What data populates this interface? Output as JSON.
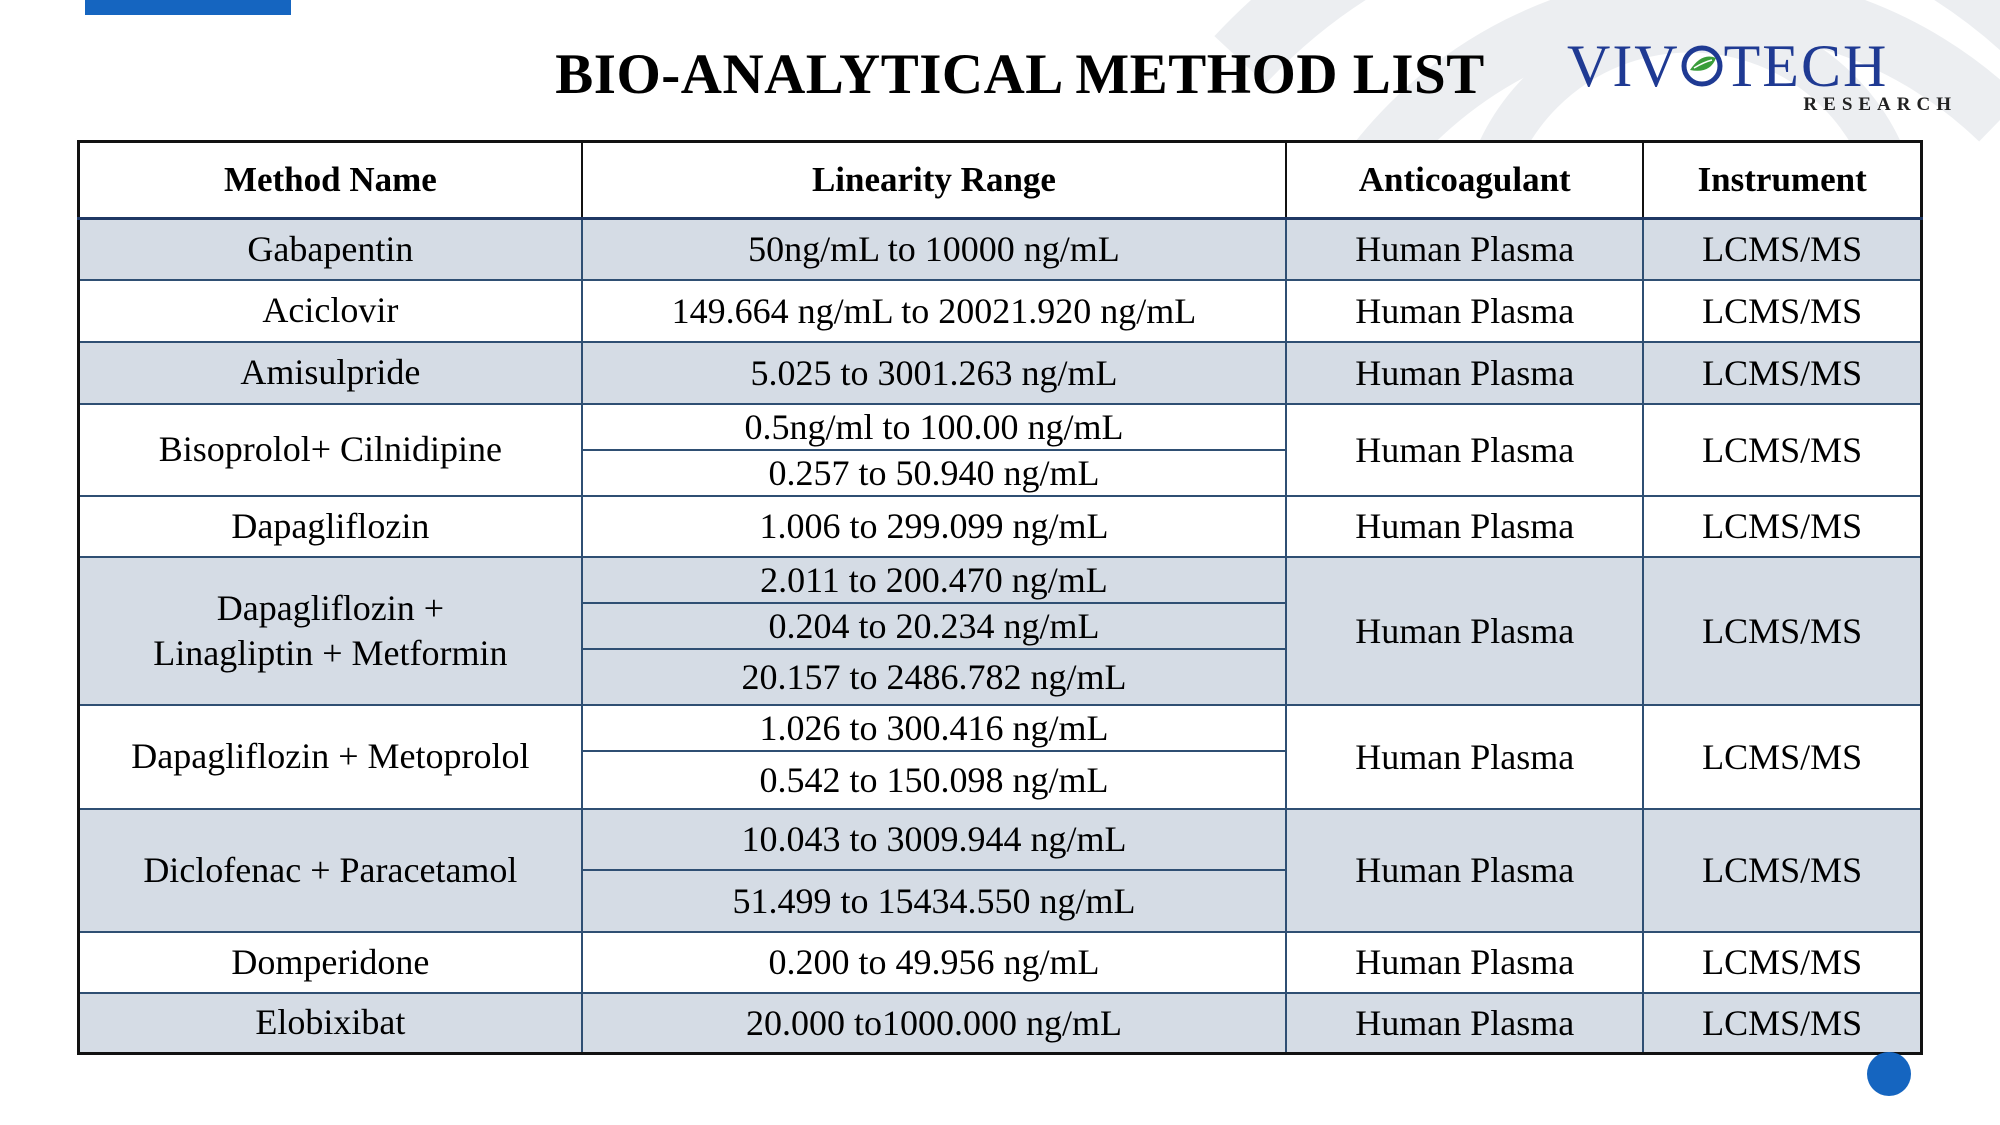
{
  "title": "BIO-ANALYTICAL METHOD LIST",
  "logo": {
    "brand_left": "VIV",
    "brand_right": "TECH",
    "sub": "RESEARCH"
  },
  "colors": {
    "accent": "#1565c0",
    "row_shade": "#d5dce5",
    "logo_blue": "#1f3a93",
    "logo_green": "#3a9d3a"
  },
  "table": {
    "headers": [
      "Method Name",
      "Linearity Range",
      "Anticoagulant",
      "Instrument"
    ],
    "rows": [
      {
        "method": "Gabapentin",
        "ranges": [
          "50ng/mL to 10000 ng/mL"
        ],
        "anticoagulant": "Human Plasma",
        "instrument": "LCMS/MS"
      },
      {
        "method": "Aciclovir",
        "ranges": [
          "149.664 ng/mL to 20021.920 ng/mL"
        ],
        "anticoagulant": "Human Plasma",
        "instrument": "LCMS/MS"
      },
      {
        "method": "Amisulpride",
        "ranges": [
          "5.025 to 3001.263 ng/mL"
        ],
        "anticoagulant": "Human Plasma",
        "instrument": "LCMS/MS"
      },
      {
        "method": "Bisoprolol+ Cilnidipine",
        "ranges": [
          "0.5ng/ml to 100.00 ng/mL",
          "0.257 to 50.940 ng/mL"
        ],
        "anticoagulant": "Human Plasma",
        "instrument": "LCMS/MS"
      },
      {
        "method": "Dapagliflozin",
        "ranges": [
          "1.006 to 299.099 ng/mL"
        ],
        "anticoagulant": "Human Plasma",
        "instrument": "LCMS/MS"
      },
      {
        "method": "Dapagliflozin +\nLinagliptin + Metformin",
        "ranges": [
          "2.011 to 200.470 ng/mL",
          "0.204 to 20.234 ng/mL",
          "20.157 to 2486.782 ng/mL"
        ],
        "anticoagulant": "Human Plasma",
        "instrument": "LCMS/MS"
      },
      {
        "method": "Dapagliflozin + Metoprolol",
        "ranges": [
          "1.026 to 300.416 ng/mL",
          "0.542 to 150.098 ng/mL"
        ],
        "anticoagulant": "Human Plasma",
        "instrument": "LCMS/MS"
      },
      {
        "method": "Diclofenac + Paracetamol",
        "ranges": [
          "10.043 to 3009.944 ng/mL",
          "51.499 to 15434.550 ng/mL"
        ],
        "anticoagulant": "Human Plasma",
        "instrument": "LCMS/MS"
      },
      {
        "method": "Domperidone",
        "ranges": [
          "0.200 to 49.956 ng/mL"
        ],
        "anticoagulant": "Human Plasma",
        "instrument": "LCMS/MS"
      },
      {
        "method": "Elobixibat",
        "ranges": [
          "20.000 to1000.000 ng/mL"
        ],
        "anticoagulant": "Human Plasma",
        "instrument": "LCMS/MS"
      }
    ]
  }
}
